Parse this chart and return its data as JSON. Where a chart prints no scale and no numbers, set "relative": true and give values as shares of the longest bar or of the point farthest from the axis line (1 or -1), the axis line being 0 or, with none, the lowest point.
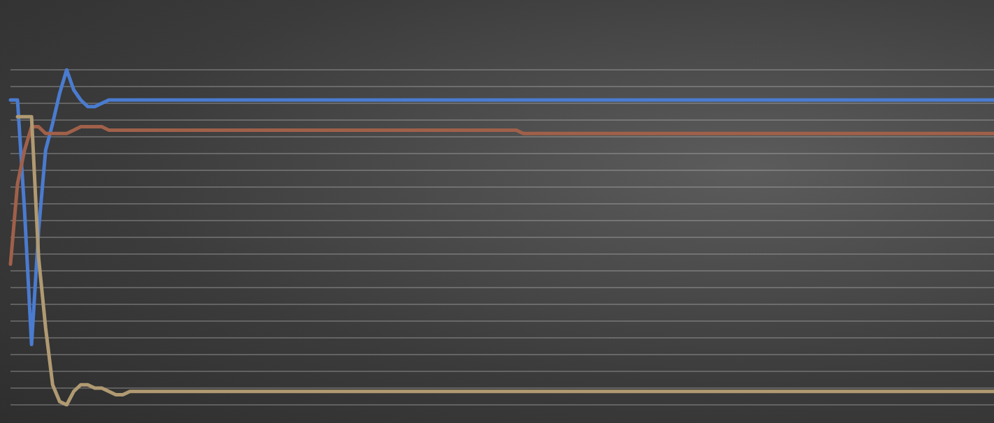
{
  "chart_data": {
    "type": "line",
    "relative": true,
    "grid": true,
    "categories": [
      null,
      null,
      null,
      null,
      null,
      null,
      null,
      null,
      null,
      null,
      null,
      null,
      null,
      null,
      null,
      null,
      null,
      null,
      null,
      null,
      null,
      null,
      null,
      null,
      null,
      null,
      null,
      null,
      null,
      null,
      null,
      null,
      null,
      null,
      null,
      null,
      null,
      null,
      null,
      null,
      null,
      null,
      null,
      null,
      null,
      null,
      null,
      null,
      null,
      null,
      null,
      null,
      null,
      null,
      null,
      null,
      null,
      null,
      null,
      null,
      null,
      null,
      null,
      null,
      null,
      null,
      null,
      null,
      null,
      null,
      null,
      null,
      null,
      null,
      null,
      null,
      null,
      null,
      null,
      null,
      null,
      null,
      null,
      null,
      null,
      null,
      null,
      null,
      null,
      null,
      null,
      null,
      null,
      null,
      null,
      null,
      null,
      null,
      null,
      null,
      null,
      null,
      null,
      null,
      null,
      null,
      null,
      null,
      null,
      null,
      null,
      null,
      null,
      null,
      null,
      null,
      null,
      null,
      null,
      null,
      null,
      null,
      null,
      null,
      null,
      null,
      null,
      null,
      null,
      null,
      null,
      null,
      null,
      null,
      null,
      null,
      null,
      null,
      null,
      null,
      null
    ],
    "series": [
      {
        "color": "#4a7bd0",
        "values": [
          0.91,
          0.91,
          0.58,
          0.18,
          0.52,
          0.76,
          0.84,
          0.93,
          1.0,
          0.94,
          0.91,
          0.89,
          0.89,
          0.9,
          0.91,
          0.91,
          0.91,
          0.91,
          0.91,
          0.91,
          0.91,
          0.91,
          0.91,
          0.91,
          0.91,
          0.91,
          0.91,
          0.91,
          0.91,
          0.91,
          0.91,
          0.91,
          0.91,
          0.91,
          0.91,
          0.91,
          0.91,
          0.91,
          0.91,
          0.91,
          0.91,
          0.91,
          0.91,
          0.91,
          0.91,
          0.91,
          0.91,
          0.91,
          0.91,
          0.91,
          0.91,
          0.91,
          0.91,
          0.91,
          0.91,
          0.91,
          0.91,
          0.91,
          0.91,
          0.91,
          0.91,
          0.91,
          0.91,
          0.91,
          0.91,
          0.91,
          0.91,
          0.91,
          0.91,
          0.91,
          0.91,
          0.91,
          0.91,
          0.91,
          0.91,
          0.91,
          0.91,
          0.91,
          0.91,
          0.91,
          0.91,
          0.91,
          0.91,
          0.91,
          0.91,
          0.91,
          0.91,
          0.91,
          0.91,
          0.91,
          0.91,
          0.91,
          0.91,
          0.91,
          0.91,
          0.91,
          0.91,
          0.91,
          0.91,
          0.91,
          0.91,
          0.91,
          0.91,
          0.91,
          0.91,
          0.91,
          0.91,
          0.91,
          0.91,
          0.91,
          0.91,
          0.91,
          0.91,
          0.91,
          0.91,
          0.91,
          0.91,
          0.91,
          0.91,
          0.91,
          0.91,
          0.91,
          0.91,
          0.91,
          0.91,
          0.91,
          0.91,
          0.91,
          0.91,
          0.91,
          0.91,
          0.91,
          0.91,
          0.91,
          0.91,
          0.91,
          0.91,
          0.91,
          0.91,
          0.91,
          0.91
        ]
      },
      {
        "color": "#a0604a",
        "values": [
          0.42,
          0.66,
          0.76,
          0.83,
          0.83,
          0.81,
          0.81,
          0.81,
          0.81,
          0.82,
          0.83,
          0.83,
          0.83,
          0.83,
          0.82,
          0.82,
          0.82,
          0.82,
          0.82,
          0.82,
          0.82,
          0.82,
          0.82,
          0.82,
          0.82,
          0.82,
          0.82,
          0.82,
          0.82,
          0.82,
          0.82,
          0.82,
          0.82,
          0.82,
          0.82,
          0.82,
          0.82,
          0.82,
          0.82,
          0.82,
          0.82,
          0.82,
          0.82,
          0.82,
          0.82,
          0.82,
          0.82,
          0.82,
          0.82,
          0.82,
          0.82,
          0.82,
          0.82,
          0.82,
          0.82,
          0.82,
          0.82,
          0.82,
          0.82,
          0.82,
          0.82,
          0.82,
          0.82,
          0.82,
          0.82,
          0.82,
          0.82,
          0.82,
          0.82,
          0.82,
          0.82,
          0.82,
          0.82,
          0.81,
          0.81,
          0.81,
          0.81,
          0.81,
          0.81,
          0.81,
          0.81,
          0.81,
          0.81,
          0.81,
          0.81,
          0.81,
          0.81,
          0.81,
          0.81,
          0.81,
          0.81,
          0.81,
          0.81,
          0.81,
          0.81,
          0.81,
          0.81,
          0.81,
          0.81,
          0.81,
          0.81,
          0.81,
          0.81,
          0.81,
          0.81,
          0.81,
          0.81,
          0.81,
          0.81,
          0.81,
          0.81,
          0.81,
          0.81,
          0.81,
          0.81,
          0.81,
          0.81,
          0.81,
          0.81,
          0.81,
          0.81,
          0.81,
          0.81,
          0.81,
          0.81,
          0.81,
          0.81,
          0.81,
          0.81,
          0.81,
          0.81,
          0.81,
          0.81,
          0.81,
          0.81,
          0.81,
          0.81,
          0.81,
          0.81,
          0.81,
          0.81
        ]
      },
      {
        "color": "#b09a72",
        "values": [
          null,
          0.86,
          0.86,
          0.86,
          0.44,
          0.23,
          0.06,
          0.01,
          0,
          0.04,
          0.06,
          0.06,
          0.05,
          0.05,
          0.04,
          0.03,
          0.03,
          0.04,
          0.04,
          0.04,
          0.04,
          0.04,
          0.04,
          0.04,
          0.04,
          0.04,
          0.04,
          0.04,
          0.04,
          0.04,
          0.04,
          0.04,
          0.04,
          0.04,
          0.04,
          0.04,
          0.04,
          0.04,
          0.04,
          0.04,
          0.04,
          0.04,
          0.04,
          0.04,
          0.04,
          0.04,
          0.04,
          0.04,
          0.04,
          0.04,
          0.04,
          0.04,
          0.04,
          0.04,
          0.04,
          0.04,
          0.04,
          0.04,
          0.04,
          0.04,
          0.04,
          0.04,
          0.04,
          0.04,
          0.04,
          0.04,
          0.04,
          0.04,
          0.04,
          0.04,
          0.04,
          0.04,
          0.04,
          0.04,
          0.04,
          0.04,
          0.04,
          0.04,
          0.04,
          0.04,
          0.04,
          0.04,
          0.04,
          0.04,
          0.04,
          0.04,
          0.04,
          0.04,
          0.04,
          0.04,
          0.04,
          0.04,
          0.04,
          0.04,
          0.04,
          0.04,
          0.04,
          0.04,
          0.04,
          0.04,
          0.04,
          0.04,
          0.04,
          0.04,
          0.04,
          0.04,
          0.04,
          0.04,
          0.04,
          0.04,
          0.04,
          0.04,
          0.04,
          0.04,
          0.04,
          0.04,
          0.04,
          0.04,
          0.04,
          0.04,
          0.04,
          0.04,
          0.04,
          0.04,
          0.04,
          0.04,
          0.04,
          0.04,
          0.04,
          0.04,
          0.04,
          0.04,
          0.04,
          0.04,
          0.04,
          0.04,
          0.04,
          0.04,
          0.04,
          0.04,
          0.04
        ]
      }
    ]
  }
}
